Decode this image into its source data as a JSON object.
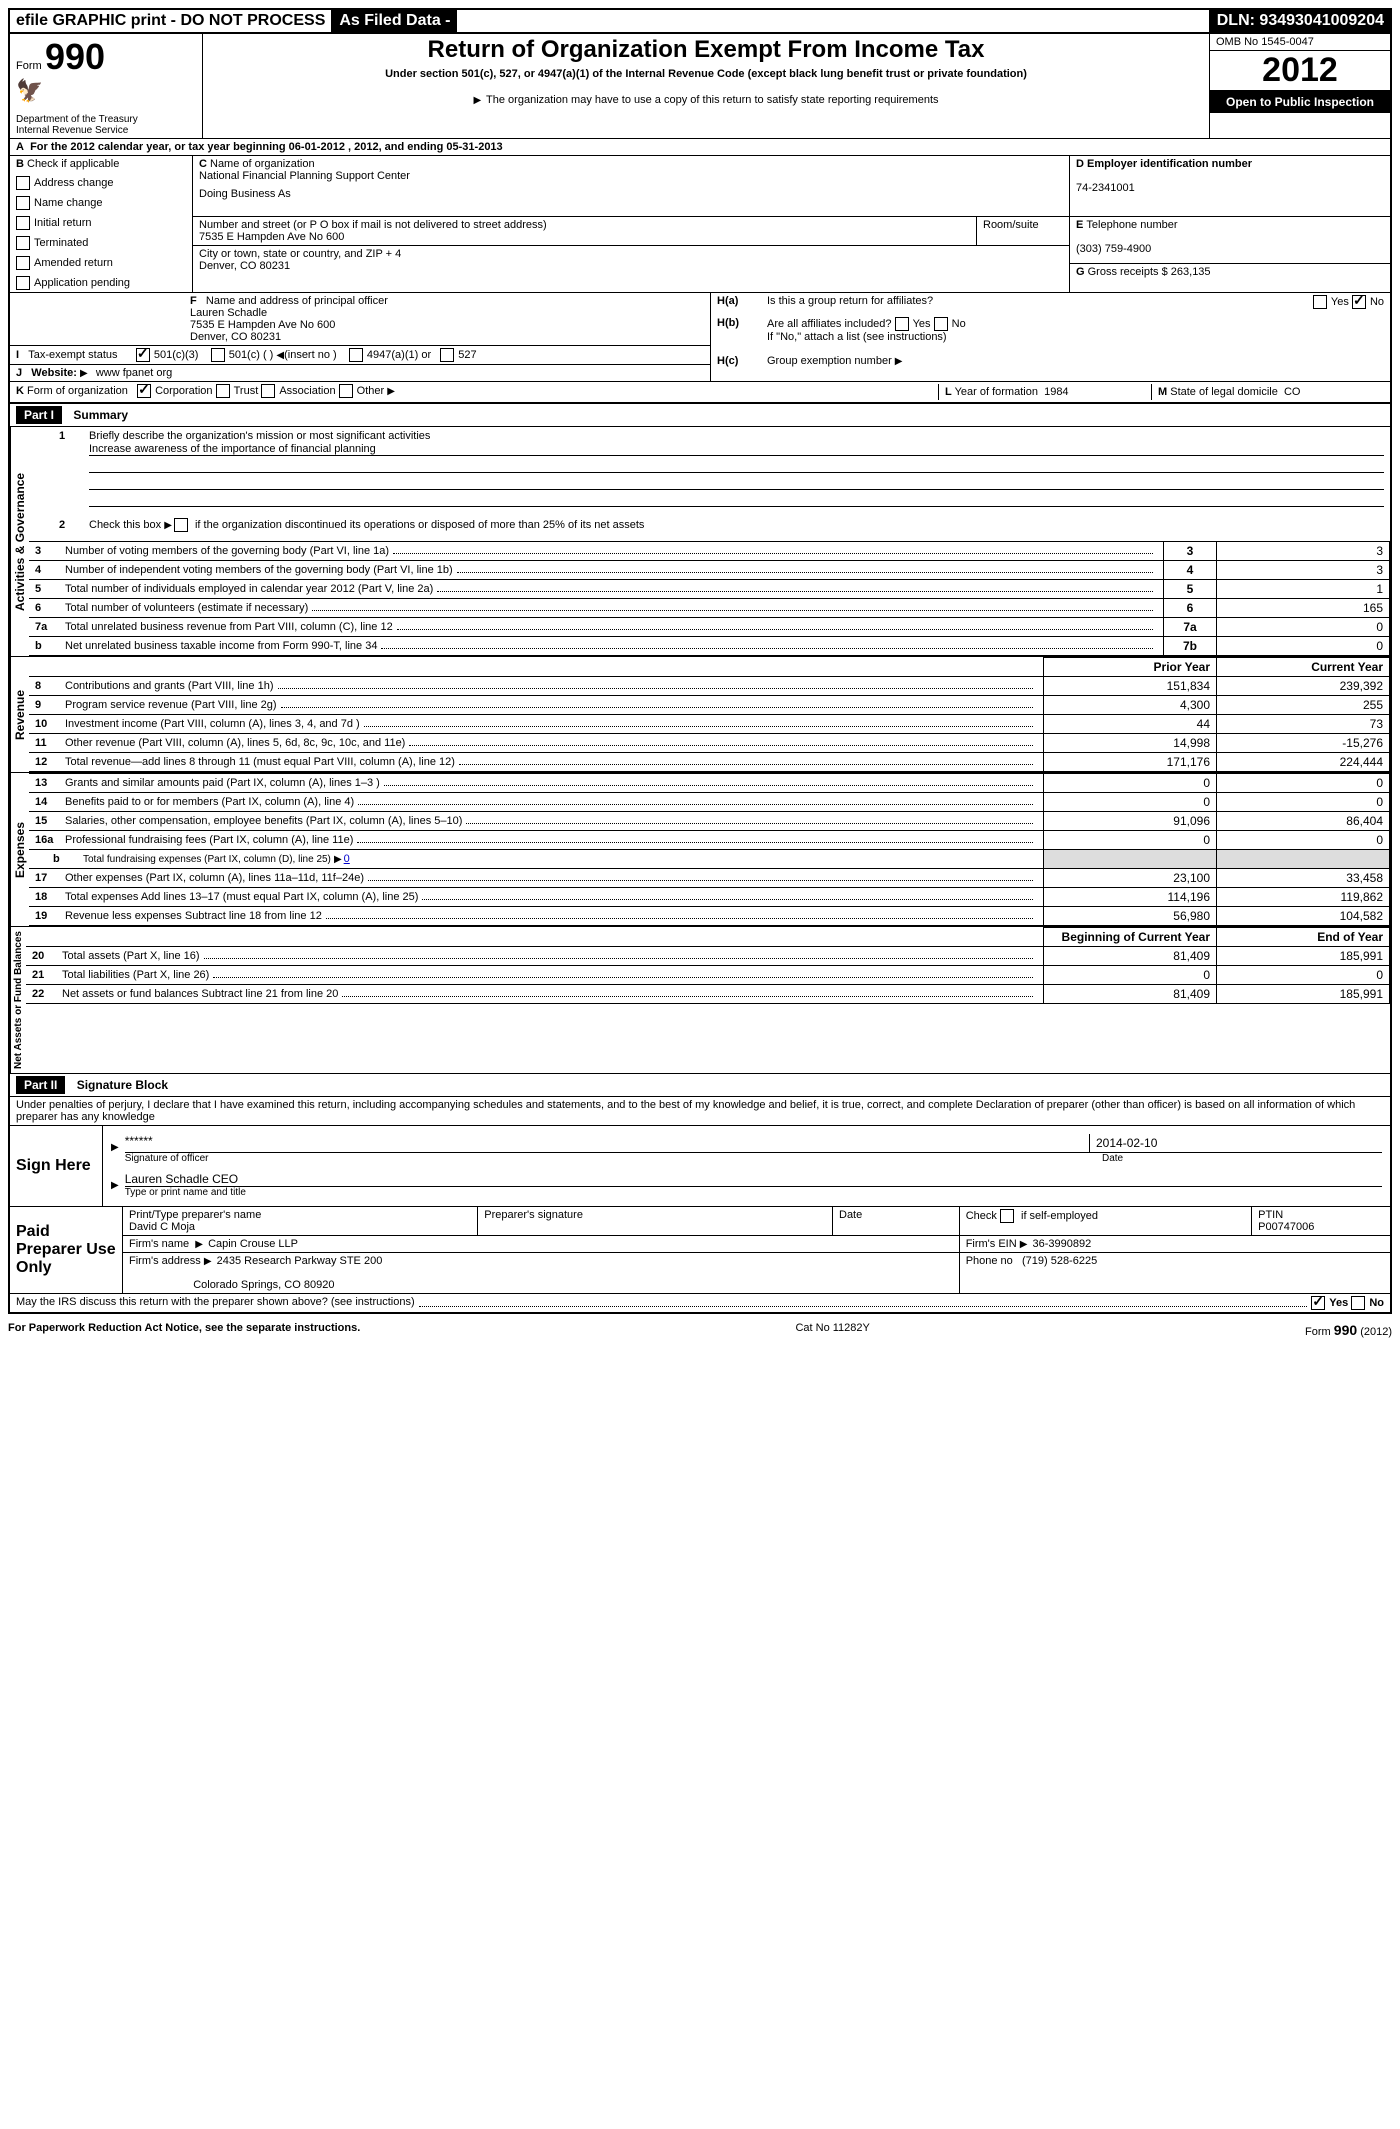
{
  "topbar": {
    "efile": "efile GRAPHIC print - DO NOT PROCESS",
    "asfiled": "As Filed Data -",
    "dln_label": "DLN:",
    "dln": "93493041009204"
  },
  "header": {
    "form_label": "Form",
    "form_no": "990",
    "dept1": "Department of the Treasury",
    "dept2": "Internal Revenue Service",
    "title": "Return of Organization Exempt From Income Tax",
    "subtitle": "Under section 501(c), 527, or 4947(a)(1) of the Internal Revenue Code (except black lung benefit trust or private foundation)",
    "note": "The organization may have to use a copy of this return to satisfy state reporting requirements",
    "omb_label": "OMB No",
    "omb": "1545-0047",
    "year": "2012",
    "open": "Open to Public Inspection"
  },
  "section_a": {
    "line": "For the 2012 calendar year, or tax year beginning 06-01-2012     , 2012, and ending 05-31-2013"
  },
  "section_b": {
    "label": "Check if applicable",
    "items": [
      "Address change",
      "Name change",
      "Initial return",
      "Terminated",
      "Amended return",
      "Application pending"
    ]
  },
  "section_c": {
    "label": "Name of organization",
    "name": "National Financial Planning Support Center",
    "dba_label": "Doing Business As",
    "addr_label": "Number and street (or P O  box if mail is not delivered to street address)",
    "room_label": "Room/suite",
    "addr": "7535 E Hampden Ave No 600",
    "city_label": "City or town, state or country, and ZIP + 4",
    "city": "Denver, CO  80231"
  },
  "section_d": {
    "label": "Employer identification number",
    "value": "74-2341001"
  },
  "section_e": {
    "label": "Telephone number",
    "value": "(303) 759-4900"
  },
  "section_g": {
    "label": "Gross receipts $",
    "value": "263,135"
  },
  "section_f": {
    "label": "Name and address of principal officer",
    "name": "Lauren Schadle",
    "addr1": "7535 E Hampden Ave No 600",
    "addr2": "Denver, CO  80231"
  },
  "section_h": {
    "ha": "Is this a group return for affiliates?",
    "hb": "Are all affiliates included?",
    "hb_note": "If \"No,\" attach a list  (see instructions)",
    "hc": "Group exemption number",
    "yes": "Yes",
    "no": "No"
  },
  "section_i": {
    "label": "Tax-exempt status",
    "opts": [
      "501(c)(3)",
      "501(c) (   )",
      "(insert no )",
      "4947(a)(1) or",
      "527"
    ]
  },
  "section_j": {
    "label": "Website:",
    "value": "www fpanet org"
  },
  "section_k": {
    "label": "Form of organization",
    "opts": [
      "Corporation",
      "Trust",
      "Association",
      "Other"
    ],
    "l_label": "Year of formation",
    "l_val": "1984",
    "m_label": "State of legal domicile",
    "m_val": "CO"
  },
  "part1": {
    "title": "Part I",
    "subtitle": "Summary",
    "tab_ag": "Activities & Governance",
    "tab_rev": "Revenue",
    "tab_exp": "Expenses",
    "tab_na": "Net Assets or Fund Balances",
    "l1": "Briefly describe the organization's mission or most significant activities",
    "l1_val": "Increase awareness of the importance of financial planning",
    "l2": "Check this box",
    "l2_rest": "if the organization discontinued its operations or disposed of more than 25% of its net assets",
    "prior_year": "Prior Year",
    "current_year": "Current Year",
    "begin_year": "Beginning of Current Year",
    "end_year": "End of Year",
    "rows_ag": [
      {
        "n": "3",
        "t": "Number of voting members of the governing body (Part VI, line 1a)",
        "c": "3",
        "v": "3"
      },
      {
        "n": "4",
        "t": "Number of independent voting members of the governing body (Part VI, line 1b)",
        "c": "4",
        "v": "3"
      },
      {
        "n": "5",
        "t": "Total number of individuals employed in calendar year 2012 (Part V, line 2a)",
        "c": "5",
        "v": "1"
      },
      {
        "n": "6",
        "t": "Total number of volunteers (estimate if necessary)",
        "c": "6",
        "v": "165"
      },
      {
        "n": "7a",
        "t": "Total unrelated business revenue from Part VIII, column (C), line 12",
        "c": "7a",
        "v": "0"
      },
      {
        "n": "b",
        "t": "Net unrelated business taxable income from Form 990-T, line 34",
        "c": "7b",
        "v": "0"
      }
    ],
    "rows_rev": [
      {
        "n": "8",
        "t": "Contributions and grants (Part VIII, line 1h)",
        "p": "151,834",
        "c": "239,392"
      },
      {
        "n": "9",
        "t": "Program service revenue (Part VIII, line 2g)",
        "p": "4,300",
        "c": "255"
      },
      {
        "n": "10",
        "t": "Investment income (Part VIII, column (A), lines 3, 4, and 7d )",
        "p": "44",
        "c": "73"
      },
      {
        "n": "11",
        "t": "Other revenue (Part VIII, column (A), lines 5, 6d, 8c, 9c, 10c, and 11e)",
        "p": "14,998",
        "c": "-15,276"
      },
      {
        "n": "12",
        "t": "Total revenue—add lines 8 through 11 (must equal Part VIII, column (A), line 12)",
        "p": "171,176",
        "c": "224,444"
      }
    ],
    "rows_exp": [
      {
        "n": "13",
        "t": "Grants and similar amounts paid (Part IX, column (A), lines 1–3 )",
        "p": "0",
        "c": "0"
      },
      {
        "n": "14",
        "t": "Benefits paid to or for members (Part IX, column (A), line 4)",
        "p": "0",
        "c": "0"
      },
      {
        "n": "15",
        "t": "Salaries, other compensation, employee benefits (Part IX, column (A), lines 5–10)",
        "p": "91,096",
        "c": "86,404"
      },
      {
        "n": "16a",
        "t": "Professional fundraising fees (Part IX, column (A), line 11e)",
        "p": "0",
        "c": "0"
      }
    ],
    "row_16b": {
      "n": "b",
      "t": "Total fundraising expenses (Part IX, column (D), line 25)",
      "v": "0"
    },
    "rows_exp2": [
      {
        "n": "17",
        "t": "Other expenses (Part IX, column (A), lines 11a–11d, 11f–24e)",
        "p": "23,100",
        "c": "33,458"
      },
      {
        "n": "18",
        "t": "Total expenses  Add lines 13–17 (must equal Part IX, column (A), line 25)",
        "p": "114,196",
        "c": "119,862"
      },
      {
        "n": "19",
        "t": "Revenue less expenses  Subtract line 18 from line 12",
        "p": "56,980",
        "c": "104,582"
      }
    ],
    "rows_na": [
      {
        "n": "20",
        "t": "Total assets (Part X, line 16)",
        "p": "81,409",
        "c": "185,991"
      },
      {
        "n": "21",
        "t": "Total liabilities (Part X, line 26)",
        "p": "0",
        "c": "0"
      },
      {
        "n": "22",
        "t": "Net assets or fund balances  Subtract line 21 from line 20",
        "p": "81,409",
        "c": "185,991"
      }
    ]
  },
  "part2": {
    "title": "Part II",
    "subtitle": "Signature Block",
    "perjury": "Under penalties of perjury, I declare that I have examined this return, including accompanying schedules and statements, and to the best of my knowledge and belief, it is true, correct, and complete  Declaration of preparer (other than officer) is based on all information of which preparer has any knowledge",
    "sign_here": "Sign Here",
    "stars": "******",
    "sig_officer": "Signature of officer",
    "date_label": "Date",
    "date": "2014-02-10",
    "officer_name": "Lauren Schadle CEO",
    "type_name": "Type or print name and title",
    "paid": "Paid Preparer Use Only",
    "prep_name_label": "Print/Type preparer's name",
    "prep_name": "David C Moja",
    "prep_sig_label": "Preparer's signature",
    "check_self": "Check          if self-employed",
    "ptin_label": "PTIN",
    "ptin": "P00747006",
    "firm_name_label": "Firm's name",
    "firm_name": "Capin Crouse LLP",
    "firm_ein_label": "Firm's EIN",
    "firm_ein": "36-3990892",
    "firm_addr_label": "Firm's address",
    "firm_addr1": "2435 Research Parkway STE 200",
    "firm_addr2": "Colorado Springs, CO  80920",
    "phone_label": "Phone no",
    "phone": "(719) 528-6225",
    "discuss": "May the IRS discuss this return with the preparer shown above? (see instructions)",
    "yes": "Yes",
    "no": "No"
  },
  "footer": {
    "pra": "For Paperwork Reduction Act Notice, see the separate instructions.",
    "cat": "Cat No 11282Y",
    "form": "Form",
    "form_no": "990",
    "form_year": "(2012)"
  }
}
